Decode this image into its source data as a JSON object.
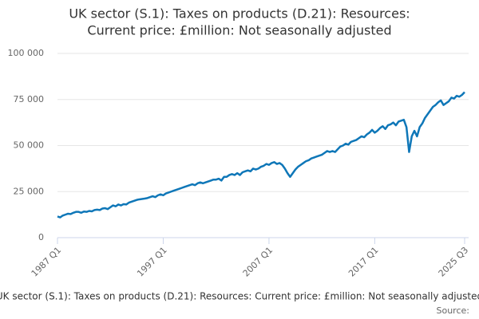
{
  "chart_data": {
    "type": "line",
    "title": [
      "UK sector (S.1): Taxes on products (D.21): Resources:",
      "Current price: £million: Not seasonally adjusted"
    ],
    "x_label": "UK sector (S.1): Taxes on products (D.21): Resources: Current price: £million: Not seasonally adjusted",
    "source": "Source:",
    "categories": [
      "1987 Q1",
      null,
      null,
      null,
      null,
      null,
      null,
      null,
      null,
      null,
      null,
      null,
      null,
      null,
      null,
      null,
      null,
      null,
      null,
      null,
      null,
      null,
      null,
      null,
      null,
      null,
      null,
      null,
      null,
      null,
      null,
      null,
      null,
      null,
      null,
      null,
      null,
      null,
      null,
      null,
      "1997 Q1",
      null,
      null,
      null,
      null,
      null,
      null,
      null,
      null,
      null,
      null,
      null,
      null,
      null,
      null,
      null,
      null,
      null,
      null,
      null,
      null,
      null,
      null,
      null,
      null,
      null,
      null,
      null,
      null,
      null,
      null,
      null,
      null,
      null,
      null,
      null,
      null,
      null,
      null,
      null,
      "2007 Q1",
      null,
      null,
      null,
      null,
      null,
      null,
      null,
      null,
      null,
      null,
      null,
      null,
      null,
      null,
      null,
      null,
      null,
      null,
      null,
      null,
      null,
      null,
      null,
      null,
      null,
      null,
      null,
      null,
      null,
      null,
      null,
      null,
      null,
      null,
      null,
      null,
      null,
      null,
      null,
      "2017 Q1",
      null,
      null,
      null,
      null,
      null,
      null,
      null,
      null,
      null,
      null,
      null,
      null,
      null,
      null,
      null,
      null,
      null,
      null,
      null,
      null,
      null,
      null,
      null,
      null,
      null,
      null,
      null,
      null,
      null,
      null,
      null,
      null,
      null,
      "2025 Q3"
    ],
    "series": [
      {
        "name": "Taxes on products",
        "color": "#0f77b8",
        "values": [
          11500,
          11000,
          12000,
          12500,
          13000,
          12800,
          13500,
          14000,
          14000,
          13500,
          14200,
          14000,
          14500,
          14300,
          15000,
          15200,
          15000,
          15800,
          16000,
          15500,
          16500,
          17500,
          17000,
          18000,
          17500,
          18200,
          18000,
          19000,
          19500,
          20000,
          20500,
          20800,
          21000,
          21200,
          21500,
          22000,
          22500,
          22000,
          23000,
          23500,
          23000,
          24000,
          24500,
          25000,
          25500,
          26000,
          26500,
          27000,
          27500,
          28000,
          28500,
          29000,
          28500,
          29500,
          30000,
          29500,
          30000,
          30500,
          31000,
          31500,
          31500,
          32000,
          31000,
          33000,
          33000,
          34000,
          34500,
          34000,
          35000,
          34000,
          35500,
          36000,
          36500,
          36000,
          37500,
          37000,
          37500,
          38500,
          39000,
          40000,
          39500,
          40500,
          41000,
          40000,
          40500,
          39500,
          37500,
          35000,
          33000,
          35000,
          37000,
          38500,
          39500,
          40500,
          41500,
          42000,
          43000,
          43500,
          44000,
          44500,
          45000,
          46000,
          47000,
          46500,
          47000,
          46500,
          48000,
          49500,
          50000,
          51000,
          50500,
          52000,
          52500,
          53000,
          54000,
          55000,
          54500,
          56000,
          57000,
          58500,
          57000,
          58000,
          59500,
          60500,
          59000,
          61000,
          61500,
          62500,
          61000,
          63000,
          63500,
          64000,
          60000,
          46500,
          55000,
          58000,
          55000,
          60000,
          62000,
          65000,
          67000,
          69000,
          71000,
          72000,
          73500,
          74500,
          72000,
          73000,
          74000,
          76000,
          75500,
          77000,
          76500,
          77500,
          79000
        ]
      }
    ],
    "ylim": [
      0,
      100000
    ],
    "yticks": [
      0,
      {
        "value": 25000,
        "label": "25 000"
      },
      {
        "value": 50000,
        "label": "50 000"
      },
      {
        "value": 75000,
        "label": "75 000"
      },
      {
        "value": 100000,
        "label": "100 000"
      }
    ],
    "grid": true
  }
}
